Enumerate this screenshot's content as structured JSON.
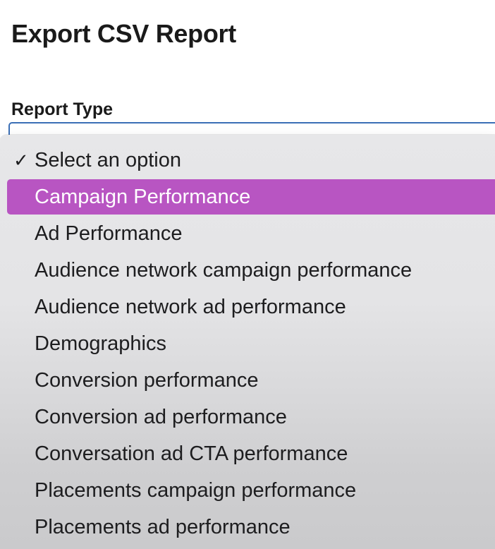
{
  "page": {
    "title": "Export CSV Report"
  },
  "form": {
    "report_type_label": "Report Type"
  },
  "dropdown": {
    "check_glyph": "✓",
    "selected_index": 0,
    "highlighted_index": 1,
    "highlight_color": "#b855c2",
    "options": [
      "Select an option",
      "Campaign Performance",
      "Ad Performance",
      "Audience network campaign performance",
      "Audience network ad performance",
      "Demographics",
      "Conversion performance",
      "Conversion ad performance",
      "Conversation ad CTA performance",
      "Placements campaign performance",
      "Placements ad performance"
    ]
  }
}
